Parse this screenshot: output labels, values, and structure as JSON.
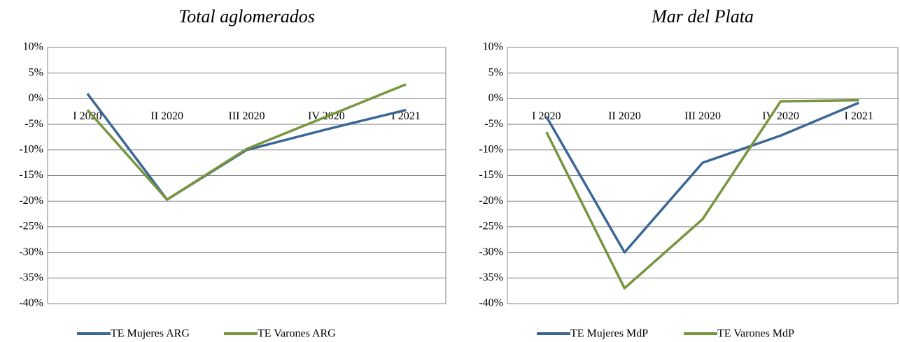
{
  "chart_data": [
    {
      "type": "line",
      "title": "Total aglomerados",
      "categories": [
        "I 2020",
        "II 2020",
        "III 2020",
        "IV 2020",
        "I 2021"
      ],
      "series": [
        {
          "name": "TE Mujeres ARG",
          "color": "#3b6796",
          "values": [
            1,
            -19.7,
            -10,
            -6,
            -2.2
          ]
        },
        {
          "name": "TE Varones ARG",
          "color": "#77953d",
          "values": [
            -2.2,
            -19.7,
            -9.8,
            -3.5,
            2.8
          ]
        }
      ],
      "ylim": [
        -40,
        10
      ],
      "yticks": [
        {
          "value": 10,
          "label": "10%"
        },
        {
          "value": 5,
          "label": "5%"
        },
        {
          "value": 0,
          "label": "0%"
        },
        {
          "value": -5,
          "label": "-5%"
        },
        {
          "value": -10,
          "label": "-10%"
        },
        {
          "value": -15,
          "label": "-15%"
        },
        {
          "value": -20,
          "label": "-20%"
        },
        {
          "value": -25,
          "label": "-25%"
        },
        {
          "value": -30,
          "label": "-30%"
        },
        {
          "value": -35,
          "label": "-35%"
        },
        {
          "value": -40,
          "label": "-40%"
        }
      ],
      "grid": true
    },
    {
      "type": "line",
      "title": "Mar del Plata",
      "categories": [
        "I 2020",
        "II 2020",
        "III 2020",
        "IV 2020",
        "I 2021"
      ],
      "series": [
        {
          "name": "TE Mujeres MdP",
          "color": "#3b6796",
          "values": [
            -3.5,
            -30,
            -12.5,
            -7.2,
            -0.8
          ]
        },
        {
          "name": "TE Varones MdP",
          "color": "#77953d",
          "values": [
            -6.5,
            -37,
            -23.5,
            -0.5,
            -0.3
          ]
        }
      ],
      "ylim": [
        -40,
        10
      ],
      "yticks": [
        {
          "value": 10,
          "label": "10%"
        },
        {
          "value": 5,
          "label": "5%"
        },
        {
          "value": 0,
          "label": "0%"
        },
        {
          "value": -5,
          "label": "-5%"
        },
        {
          "value": -10,
          "label": "-10%"
        },
        {
          "value": -15,
          "label": "-15%"
        },
        {
          "value": -20,
          "label": "-20%"
        },
        {
          "value": -25,
          "label": "-25%"
        },
        {
          "value": -30,
          "label": "-30%"
        },
        {
          "value": -35,
          "label": "-35%"
        },
        {
          "value": -40,
          "label": "-40%"
        }
      ],
      "grid": true
    }
  ]
}
